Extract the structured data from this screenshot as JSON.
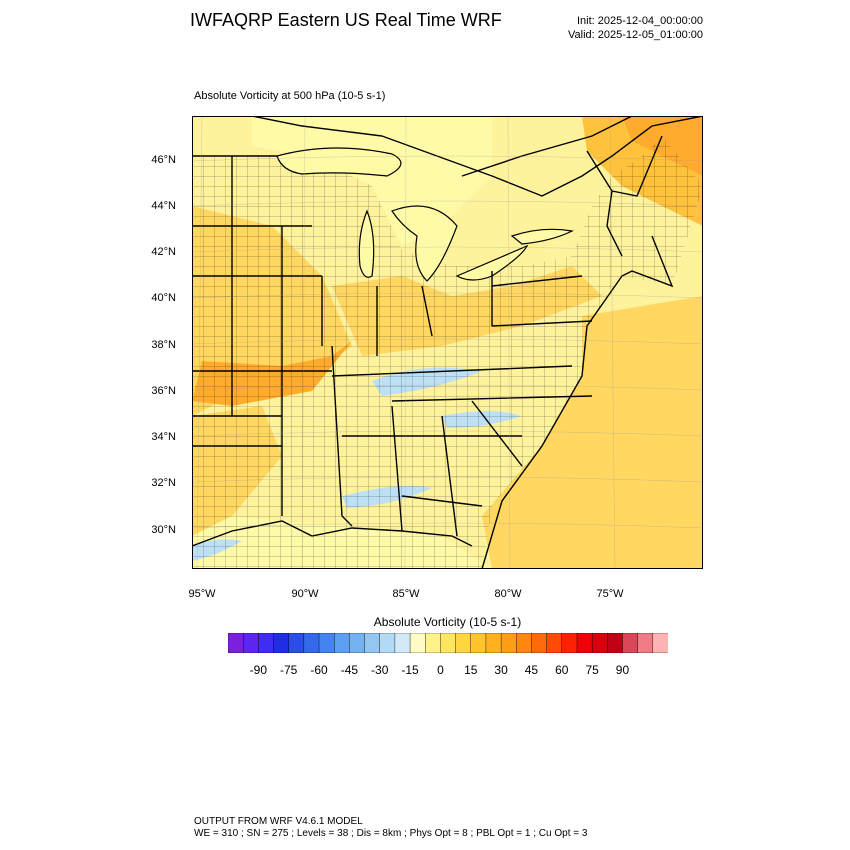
{
  "header": {
    "title": "IWFAQRP Eastern US Real Time WRF",
    "init": "Init: 2025-12-04_00:00:00",
    "valid": "Valid: 2025-12-05_01:00:00"
  },
  "map": {
    "subtitle": "Absolute Vorticity at 500 hPa   (10-5 s-1)",
    "lat_labels": [
      "46°N",
      "44°N",
      "42°N",
      "40°N",
      "38°N",
      "36°N",
      "34°N",
      "32°N",
      "30°N"
    ],
    "lon_labels": [
      "95°W",
      "90°W",
      "85°W",
      "80°W",
      "75°W"
    ],
    "colors": {
      "land_base": "#fff29c",
      "yellow_light": "#fffaa8",
      "orange_light": "#ffd761",
      "orange_mid": "#ffc23d",
      "orange_dark": "#ffab2e",
      "blue_light": "#bde0f5",
      "boundary": "#000000"
    }
  },
  "colorbar": {
    "title": "Absolute Vorticity  (10-5 s-1)",
    "tick_labels": [
      "-90",
      "-75",
      "-60",
      "-45",
      "-30",
      "-15",
      "0",
      "15",
      "30",
      "45",
      "60",
      "75",
      "90"
    ],
    "colors": [
      "#7b1fe0",
      "#5e25f0",
      "#3f2cf5",
      "#1f2ee6",
      "#2a4fe8",
      "#3569eb",
      "#4584ee",
      "#5c9eef",
      "#74b3f0",
      "#93c7f2",
      "#b2daf4",
      "#d2eaf7",
      "#fffbc4",
      "#fff28a",
      "#ffe660",
      "#ffd640",
      "#ffc52a",
      "#ffb21c",
      "#ff9e14",
      "#ff860f",
      "#ff6a0a",
      "#ff4b07",
      "#ff2104",
      "#f00008",
      "#d8000f",
      "#c00014",
      "#d94759",
      "#ef7b85",
      "#ffb3b3"
    ]
  },
  "footer": {
    "line1": "OUTPUT FROM WRF V4.6.1 MODEL",
    "line2": "WE = 310 ; SN = 275 ; Levels = 38 ; Dis = 8km ; Phys Opt = 8 ; PBL Opt = 1 ; Cu Opt = 3"
  }
}
